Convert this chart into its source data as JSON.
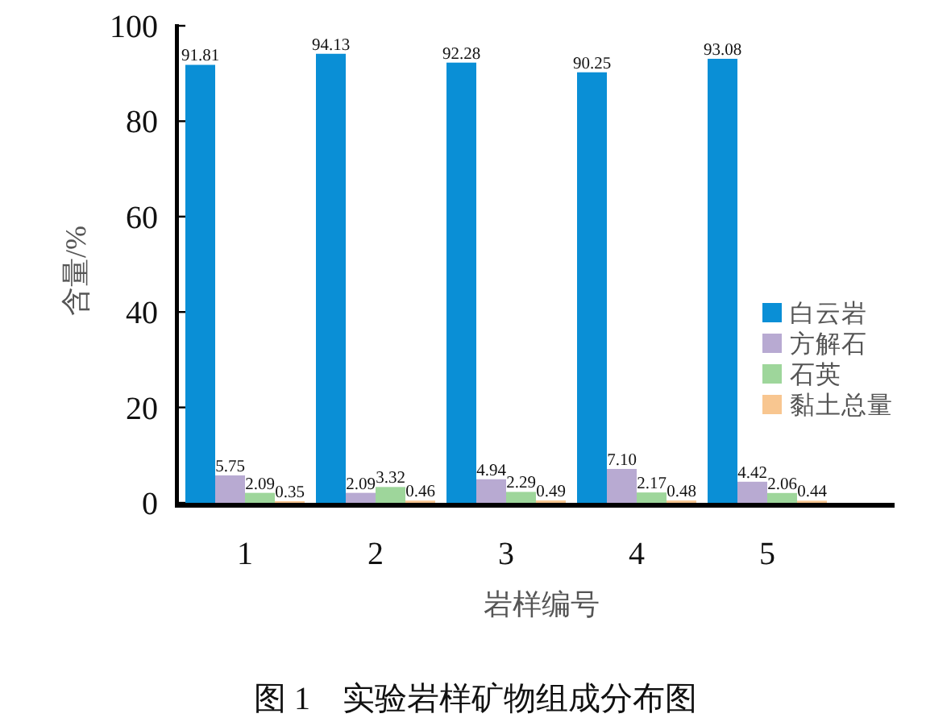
{
  "chart_data": {
    "type": "bar",
    "title": "图 1　实验岩样矿物组成分布图",
    "xlabel": "岩样编号",
    "ylabel": "含量/%",
    "categories": [
      "1",
      "2",
      "3",
      "4",
      "5"
    ],
    "series": [
      {
        "name": "白云岩",
        "color": "#0a8fd6",
        "values": [
          91.81,
          94.13,
          92.28,
          90.25,
          93.08
        ],
        "value_labels": [
          "91.81",
          "94.13",
          "92.28",
          "90.25",
          "93.08"
        ]
      },
      {
        "name": "方解石",
        "color": "#b8aad2",
        "values": [
          5.75,
          2.09,
          4.94,
          7.1,
          4.42
        ],
        "value_labels": [
          "5.75",
          "2.09",
          "4.94",
          "7.10",
          "4.42"
        ]
      },
      {
        "name": "石英",
        "color": "#9ed69b",
        "values": [
          2.09,
          3.32,
          2.29,
          2.17,
          2.06
        ],
        "value_labels": [
          "2.09",
          "3.32",
          "2.29",
          "2.17",
          "2.06"
        ]
      },
      {
        "name": "黏土总量",
        "color": "#f8c690",
        "values": [
          0.35,
          0.46,
          0.49,
          0.48,
          0.44
        ],
        "value_labels": [
          "0.35",
          "0.46",
          "0.49",
          "0.48",
          "0.44"
        ]
      }
    ],
    "ylim": [
      0,
      100
    ],
    "yticks": [
      0,
      20,
      40,
      60,
      80,
      100
    ],
    "legend": "right"
  }
}
